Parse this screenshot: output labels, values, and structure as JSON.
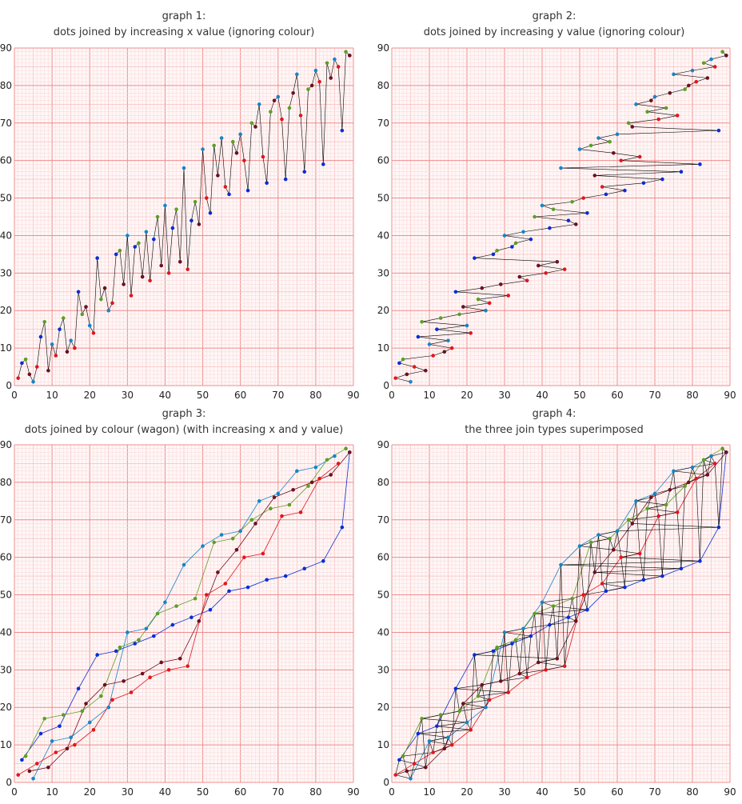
{
  "chart_data": [
    {
      "type": "scatter",
      "title": "graph 1:",
      "subtitle": "dots joined by increasing x value (ignoring colour)",
      "join": "x",
      "xlim": [
        0,
        90
      ],
      "ylim": [
        0,
        90
      ],
      "xticks": [
        "0",
        "10",
        "20",
        "30",
        "40",
        "50",
        "60",
        "70",
        "80",
        "90"
      ],
      "yticks": [
        "0",
        "10",
        "20",
        "30",
        "40",
        "50",
        "60",
        "70",
        "80",
        "90"
      ],
      "grid": true
    },
    {
      "type": "scatter",
      "title": "graph 2:",
      "subtitle": "dots joined by increasing y value (ignoring colour)",
      "join": "y",
      "xlim": [
        0,
        90
      ],
      "ylim": [
        0,
        90
      ],
      "xticks": [
        "0",
        "10",
        "20",
        "30",
        "40",
        "50",
        "60",
        "70",
        "80",
        "90"
      ],
      "yticks": [
        "0",
        "10",
        "20",
        "30",
        "40",
        "50",
        "60",
        "70",
        "80",
        "90"
      ],
      "grid": true
    },
    {
      "type": "scatter",
      "title": "graph 3:",
      "subtitle": "dots joined by colour (wagon) (with increasing x and y value)",
      "join": "colour",
      "xlim": [
        0,
        90
      ],
      "ylim": [
        0,
        90
      ],
      "xticks": [
        "0",
        "10",
        "20",
        "30",
        "40",
        "50",
        "60",
        "70",
        "80",
        "90"
      ],
      "yticks": [
        "0",
        "10",
        "20",
        "30",
        "40",
        "50",
        "60",
        "70",
        "80",
        "90"
      ],
      "grid": true
    },
    {
      "type": "scatter",
      "title": "graph 4:",
      "subtitle": "the three join types superimposed",
      "join": "all",
      "xlim": [
        0,
        90
      ],
      "ylim": [
        0,
        90
      ],
      "xticks": [
        "0",
        "10",
        "20",
        "30",
        "40",
        "50",
        "60",
        "70",
        "80",
        "90"
      ],
      "yticks": [
        "0",
        "10",
        "20",
        "30",
        "40",
        "50",
        "60",
        "70",
        "80",
        "90"
      ],
      "grid": true
    }
  ],
  "series": [
    {
      "color": "#0a2cd6",
      "points": [
        [
          2,
          6
        ],
        [
          7,
          13
        ],
        [
          12,
          15
        ],
        [
          17,
          25
        ],
        [
          22,
          34
        ],
        [
          27,
          35
        ],
        [
          32,
          37
        ],
        [
          37,
          39
        ],
        [
          42,
          42
        ],
        [
          47,
          44
        ],
        [
          52,
          46
        ],
        [
          57,
          51
        ],
        [
          62,
          52
        ],
        [
          67,
          54
        ],
        [
          72,
          55
        ],
        [
          77,
          57
        ],
        [
          82,
          59
        ],
        [
          87,
          68
        ],
        [
          89,
          88
        ]
      ]
    },
    {
      "color": "#1784c8",
      "points": [
        [
          5,
          1
        ],
        [
          10,
          11
        ],
        [
          15,
          12
        ],
        [
          20,
          16
        ],
        [
          25,
          20
        ],
        [
          30,
          40
        ],
        [
          35,
          41
        ],
        [
          40,
          48
        ],
        [
          45,
          58
        ],
        [
          50,
          63
        ],
        [
          55,
          66
        ],
        [
          60,
          67
        ],
        [
          65,
          75
        ],
        [
          70,
          77
        ],
        [
          75,
          83
        ],
        [
          80,
          84
        ],
        [
          85,
          87
        ]
      ]
    },
    {
      "color": "#5e9e24",
      "points": [
        [
          3,
          7
        ],
        [
          8,
          17
        ],
        [
          13,
          18
        ],
        [
          18,
          19
        ],
        [
          23,
          23
        ],
        [
          28,
          36
        ],
        [
          33,
          38
        ],
        [
          38,
          45
        ],
        [
          43,
          47
        ],
        [
          48,
          49
        ],
        [
          53,
          64
        ],
        [
          58,
          65
        ],
        [
          63,
          70
        ],
        [
          68,
          73
        ],
        [
          73,
          74
        ],
        [
          78,
          79
        ],
        [
          83,
          86
        ],
        [
          88,
          89
        ]
      ]
    },
    {
      "color": "#6e0f1e",
      "points": [
        [
          4,
          3
        ],
        [
          9,
          4
        ],
        [
          14,
          9
        ],
        [
          19,
          21
        ],
        [
          24,
          26
        ],
        [
          29,
          27
        ],
        [
          34,
          29
        ],
        [
          39,
          32
        ],
        [
          44,
          33
        ],
        [
          49,
          43
        ],
        [
          54,
          56
        ],
        [
          59,
          62
        ],
        [
          64,
          69
        ],
        [
          69,
          76
        ],
        [
          74,
          78
        ],
        [
          79,
          80
        ],
        [
          84,
          82
        ],
        [
          89,
          88
        ]
      ]
    },
    {
      "color": "#e2161c",
      "points": [
        [
          1,
          2
        ],
        [
          6,
          5
        ],
        [
          11,
          8
        ],
        [
          16,
          10
        ],
        [
          21,
          14
        ],
        [
          26,
          22
        ],
        [
          31,
          24
        ],
        [
          36,
          28
        ],
        [
          41,
          30
        ],
        [
          46,
          31
        ],
        [
          51,
          50
        ],
        [
          56,
          53
        ],
        [
          61,
          60
        ],
        [
          66,
          61
        ],
        [
          71,
          71
        ],
        [
          76,
          72
        ],
        [
          81,
          81
        ],
        [
          86,
          85
        ]
      ]
    }
  ]
}
